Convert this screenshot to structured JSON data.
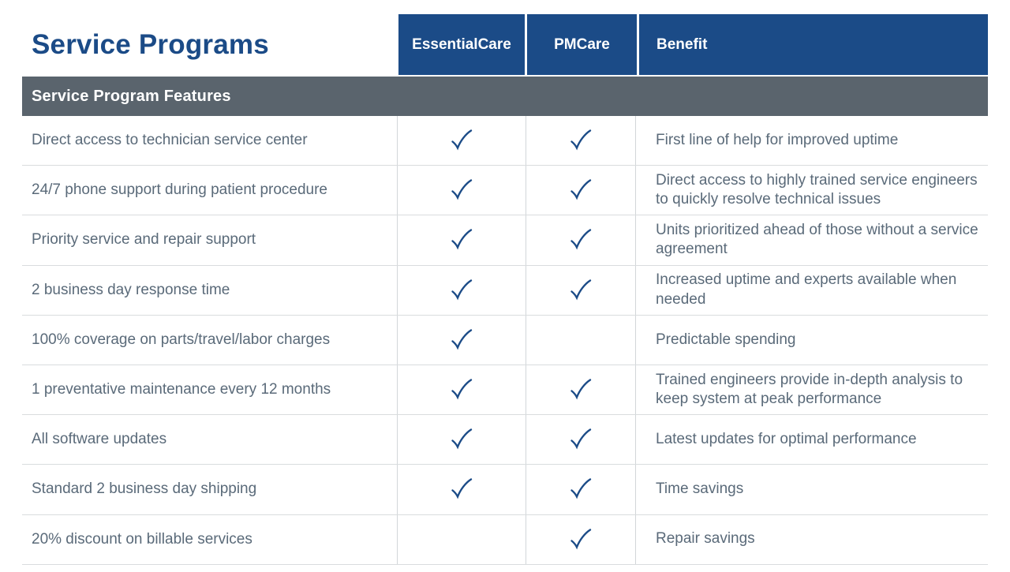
{
  "page": {
    "title": "Service Programs",
    "section_header": "Service Program Features"
  },
  "columns": {
    "essential": "EssentialCare",
    "pm": "PMCare",
    "benefit": "Benefit"
  },
  "icons": {
    "check": "check-icon",
    "check_glyph": "✓"
  },
  "colors": {
    "blue": "#1b4b87",
    "band": "#5a646d",
    "text": "#5a6a79",
    "line": "#d9dcde",
    "vline": "#d2d6d9",
    "check": "#1b4b87"
  },
  "rows": [
    {
      "feature": "Direct access to technician service center",
      "essential": true,
      "pm": true,
      "benefit": "First line of help for improved uptime"
    },
    {
      "feature": "24/7 phone support during patient procedure",
      "essential": true,
      "pm": true,
      "benefit": "Direct access to highly trained service engineers to quickly resolve technical issues"
    },
    {
      "feature": "Priority service and repair support",
      "essential": true,
      "pm": true,
      "benefit": "Units prioritized ahead of those without a service agreement"
    },
    {
      "feature": "2 business day response time",
      "essential": true,
      "pm": true,
      "benefit": "Increased uptime and experts available when needed"
    },
    {
      "feature": "100% coverage on parts/travel/labor charges",
      "essential": true,
      "pm": false,
      "benefit": "Predictable spending"
    },
    {
      "feature": "1 preventative maintenance every 12 months",
      "essential": true,
      "pm": true,
      "benefit": "Trained engineers provide in-depth analysis to keep system at peak performance"
    },
    {
      "feature": "All software updates",
      "essential": true,
      "pm": true,
      "benefit": "Latest updates for optimal performance"
    },
    {
      "feature": "Standard 2 business day shipping",
      "essential": true,
      "pm": true,
      "benefit": "Time savings"
    },
    {
      "feature": "20% discount on billable services",
      "essential": false,
      "pm": true,
      "benefit": "Repair savings"
    }
  ]
}
